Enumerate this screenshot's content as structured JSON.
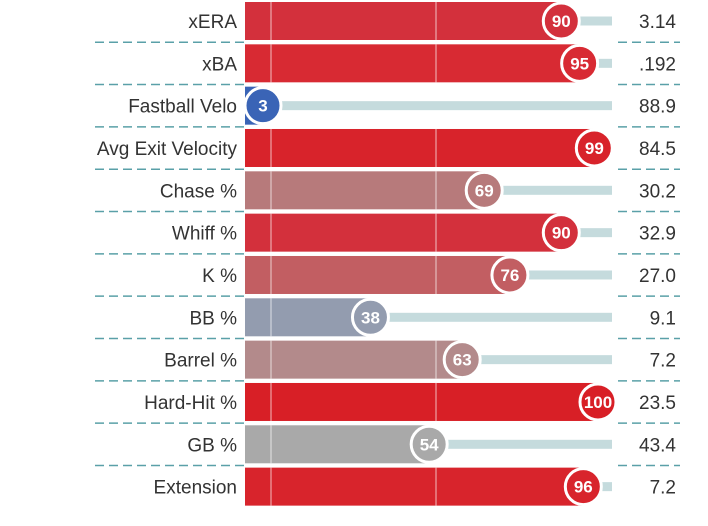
{
  "chart_data": {
    "type": "bar",
    "orientation": "horizontal",
    "xlim": [
      0,
      100
    ],
    "metrics": [
      {
        "label": "xERA",
        "percentile": 90,
        "value": "3.14",
        "color": "#d3303c"
      },
      {
        "label": "xBA",
        "percentile": 95,
        "value": ".192",
        "color": "#d82a33"
      },
      {
        "label": "Fastball Velo",
        "percentile": 3,
        "value": "88.9",
        "color": "#3a64b6"
      },
      {
        "label": "Avg Exit Velocity",
        "percentile": 99,
        "value": "84.5",
        "color": "#d8232b"
      },
      {
        "label": "Chase %",
        "percentile": 69,
        "value": "30.2",
        "color": "#b77a7b"
      },
      {
        "label": "Whiff %",
        "percentile": 90,
        "value": "32.9",
        "color": "#d3303c"
      },
      {
        "label": "K %",
        "percentile": 76,
        "value": "27.0",
        "color": "#c25e62"
      },
      {
        "label": "BB %",
        "percentile": 38,
        "value": "9.1",
        "color": "#939caf"
      },
      {
        "label": "Barrel %",
        "percentile": 63,
        "value": "7.2",
        "color": "#b38a8b"
      },
      {
        "label": "Hard-Hit %",
        "percentile": 100,
        "value": "23.5",
        "color": "#d81f26"
      },
      {
        "label": "GB %",
        "percentile": 54,
        "value": "43.4",
        "color": "#a9a9a9"
      },
      {
        "label": "Extension",
        "percentile": 96,
        "value": "7.2",
        "color": "#d8242c"
      }
    ],
    "track_color": "#c5dbdd",
    "divider_color": "#5aa0a8"
  }
}
